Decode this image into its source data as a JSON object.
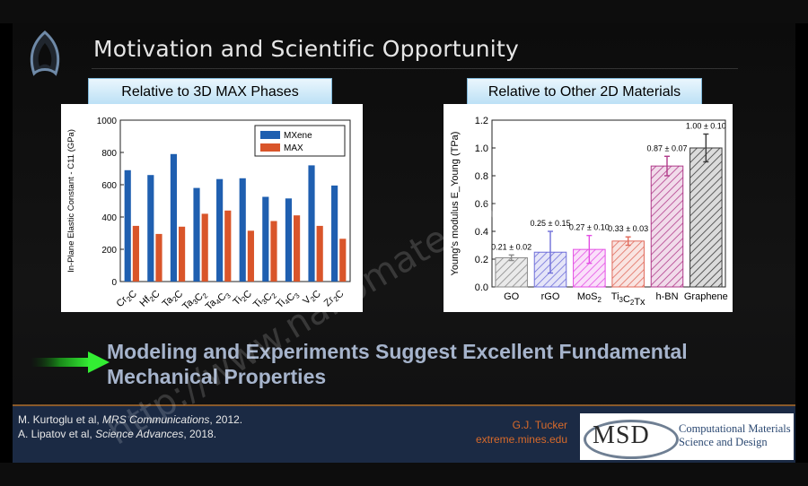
{
  "slide": {
    "title": "Motivation and Scientific Opportunity",
    "headline_line1": "Modeling and Experiments Suggest Excellent Fundamental",
    "headline_line2": "Mechanical Properties",
    "watermark": "http://www.nanomaterials.com"
  },
  "left_panel": {
    "label": "Relative to 3D MAX Phases"
  },
  "right_panel": {
    "label": "Relative to Other 2D Materials"
  },
  "footer": {
    "cite1_prefix": "M. Kurtoglu et al, ",
    "cite1_journal": "MRS Communications",
    "cite1_suffix": ", 2012.",
    "cite2_prefix": "A. Lipatov et al, ",
    "cite2_journal": "Science Advances",
    "cite2_suffix": ", 2018.",
    "author_name": "G.J. Tucker",
    "author_site": "extreme.mines.edu",
    "logo_text": "MSD",
    "logo_sub_line1": "Computational Materials",
    "logo_sub_line2": "Science and Design"
  },
  "colors": {
    "mxene": "#1f5fb0",
    "max": "#d9552a",
    "accent_green": "#22cc22"
  },
  "chart_data": [
    {
      "type": "bar",
      "title": "Relative to 3D MAX Phases",
      "categories": [
        "Cr2C",
        "Hf2C",
        "Ta2C",
        "Ta3C2",
        "Ta4C3",
        "Ti2C",
        "Ti3C2",
        "Ti4C3",
        "V2C",
        "Zr2C"
      ],
      "series": [
        {
          "name": "MXene",
          "values": [
            690,
            660,
            790,
            580,
            635,
            640,
            525,
            515,
            720,
            595
          ]
        },
        {
          "name": "MAX",
          "values": [
            345,
            295,
            340,
            420,
            440,
            315,
            375,
            410,
            345,
            265
          ]
        }
      ],
      "ylabel": "In-Plane Elastic Constant - C11 (GPa)",
      "ylim": [
        0,
        1000
      ],
      "yticks": [
        0,
        200,
        400,
        600,
        800,
        1000
      ],
      "legend": "top-right"
    },
    {
      "type": "bar",
      "title": "Relative to Other 2D Materials",
      "categories": [
        "GO",
        "rGO",
        "MoS2",
        "Ti3C2Tx",
        "h-BN",
        "Graphene"
      ],
      "values": [
        0.21,
        0.25,
        0.27,
        0.33,
        0.87,
        1.0
      ],
      "errors": [
        0.02,
        0.15,
        0.1,
        0.03,
        0.07,
        0.1
      ],
      "data_labels": [
        "0.21 ± 0.02",
        "0.25 ± 0.15",
        "0.27 ± 0.10",
        "0.33 ± 0.03",
        "0.87 ± 0.07",
        "1.00 ± 0.10"
      ],
      "colors": [
        "#8a8a8a",
        "#6f6fd9",
        "#e44ee4",
        "#e0695a",
        "#b03a8a",
        "#3a3a3a"
      ],
      "ylabel": "Young's modulus E_Young (TPa)",
      "ylim": [
        0,
        1.2
      ],
      "yticks": [
        "0.0",
        "0.2",
        "0.4",
        "0.6",
        "0.8",
        "1.0",
        "1.2"
      ]
    }
  ]
}
